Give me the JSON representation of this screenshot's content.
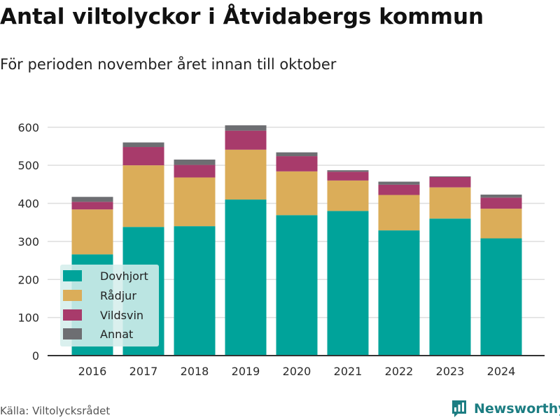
{
  "chart_data": {
    "type": "bar",
    "stacked": true,
    "title": "Antal viltolyckor i Åtvidabergs kommun",
    "subtitle": "För perioden november året innan till oktober",
    "categories": [
      "2016",
      "2017",
      "2018",
      "2019",
      "2020",
      "2021",
      "2022",
      "2023",
      "2024"
    ],
    "series": [
      {
        "name": "Dovhjort",
        "color": "#00a39a",
        "values": [
          266,
          338,
          340,
          410,
          369,
          380,
          329,
          360,
          308
        ]
      },
      {
        "name": "Rådjur",
        "color": "#dbad59",
        "values": [
          118,
          162,
          128,
          131,
          115,
          80,
          93,
          82,
          78
        ]
      },
      {
        "name": "Vildsvin",
        "color": "#a83b6b",
        "values": [
          20,
          48,
          33,
          50,
          40,
          23,
          27,
          27,
          29
        ]
      },
      {
        "name": "Annat",
        "color": "#6d6e72",
        "values": [
          13,
          12,
          14,
          14,
          10,
          4,
          8,
          2,
          8
        ]
      }
    ],
    "yticks": [
      0,
      100,
      200,
      300,
      400,
      500,
      600
    ],
    "ylim": [
      0,
      640
    ],
    "grid": true,
    "legend": "bottom-left",
    "xlabel": "",
    "ylabel": ""
  },
  "source": "Källa: Viltolycksrådet",
  "brand": {
    "name": "Newsworthy",
    "color": "#1c7d82",
    "logo_icon": "newsworthy-chart-bubble-icon"
  }
}
